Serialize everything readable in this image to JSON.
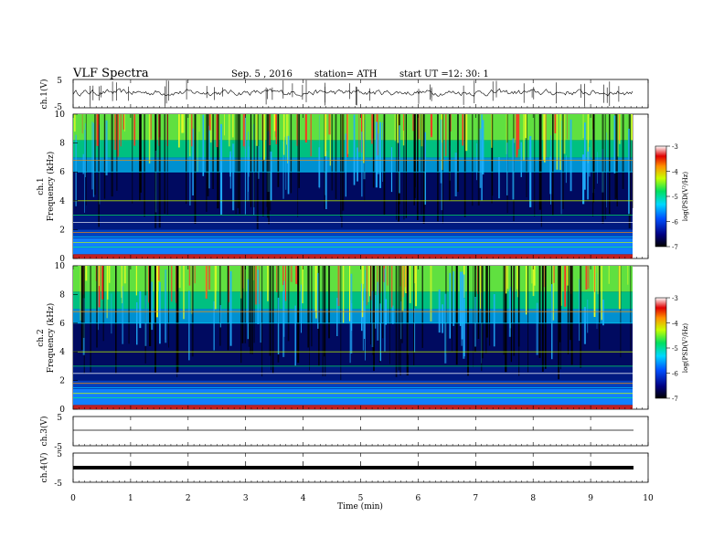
{
  "header": {
    "title": "VLF  Spectra",
    "date": "Sep. 5  , 2016",
    "station": "station= ATH",
    "start_label": "start  UT  =",
    "start_time": "12: 30: 1"
  },
  "chart_data": [
    {
      "type": "line",
      "name": "ch1-waveform",
      "ylabel": "ch.1(V)",
      "ylim": [
        -5,
        5
      ],
      "yticks": [
        "5",
        "-5"
      ],
      "xlim": [
        0,
        10
      ],
      "description_of_signal": "noisy waveform near 0 V with sferic spikes"
    },
    {
      "type": "heatmap",
      "name": "ch1-spectrogram",
      "ylabel_line1": "ch.1",
      "ylabel_line2": "Frequency  (kHz)",
      "ylim": [
        0,
        10
      ],
      "yticks": [
        "0",
        "2",
        "4",
        "6",
        "8",
        "10"
      ],
      "xlim": [
        0,
        9.8
      ],
      "colorbar": {
        "label": "log(PSD(V²/Hz)",
        "range": [
          -7,
          -3
        ],
        "ticks": [
          "-3",
          "-4",
          "-5",
          "-6",
          "-7"
        ]
      }
    },
    {
      "type": "heatmap",
      "name": "ch2-spectrogram",
      "ylabel_line1": "ch.2",
      "ylabel_line2": "Frequency  (kHz)",
      "ylim": [
        0,
        10
      ],
      "yticks": [
        "0",
        "2",
        "4",
        "6",
        "8",
        "10"
      ],
      "xlim": [
        0,
        9.8
      ],
      "colorbar": {
        "label": "log(PSD(V²/Hz)",
        "range": [
          -7,
          -3
        ],
        "ticks": [
          "-3",
          "-4",
          "-5",
          "-6",
          "-7"
        ]
      }
    },
    {
      "type": "line",
      "name": "ch3-waveform",
      "ylabel": "ch.3(V)",
      "ylim": [
        -5,
        5
      ],
      "yticks": [
        "5",
        "-5"
      ],
      "value": -0.5
    },
    {
      "type": "line",
      "name": "ch4-waveform",
      "ylabel": "ch.4(V)",
      "ylim": [
        -5,
        5
      ],
      "yticks": [
        "5",
        "-5"
      ],
      "value": -1.5
    }
  ],
  "xaxis": {
    "label": "Time  (min)",
    "ticks": [
      "0",
      "1",
      "2",
      "3",
      "4",
      "5",
      "6",
      "7",
      "8",
      "9",
      "10"
    ],
    "range": [
      0,
      10
    ]
  }
}
